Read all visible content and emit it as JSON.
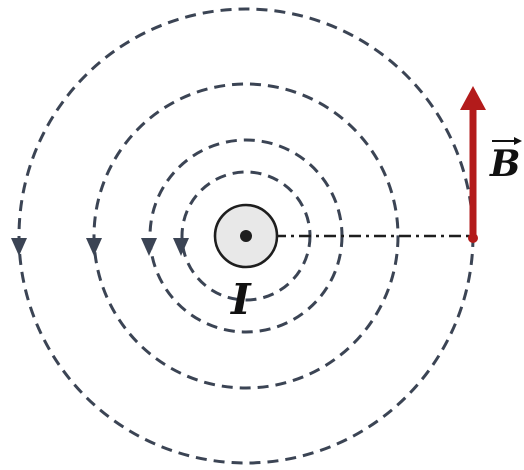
{
  "labels": {
    "current": "I",
    "field": "B"
  },
  "colors": {
    "field_lines": "#3b4454",
    "wire_fill": "#e8e8e8",
    "wire_stroke": "#1e1e1e",
    "vector": "#b31b1b",
    "text": "#111111"
  },
  "icons": {
    "current_symbol": "dot-out-of-page",
    "field_vector": "arrow-up"
  }
}
